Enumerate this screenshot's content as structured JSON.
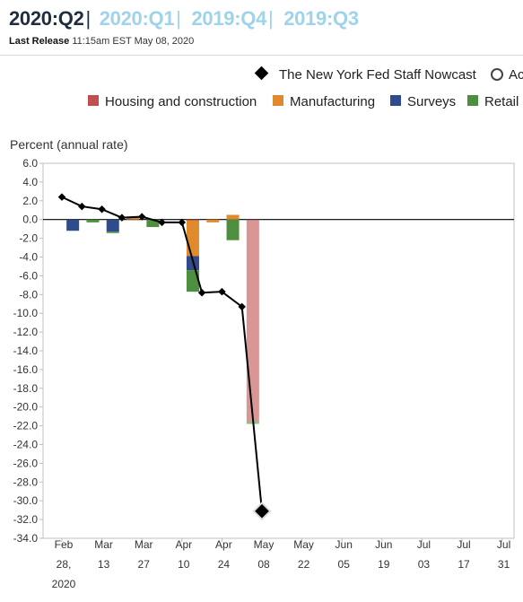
{
  "header": {
    "tabs": [
      {
        "label": "2020:Q2",
        "active": true
      },
      {
        "label": "2020:Q1",
        "active": false
      },
      {
        "label": "2019:Q4",
        "active": false
      },
      {
        "label": "2019:Q3",
        "active": false
      }
    ],
    "separator": "|",
    "release_label": "Last Release",
    "release_time": "11:15am EST May 08, 2020"
  },
  "colors": {
    "housing": "#c0504d",
    "manufacturing": "#e08a2e",
    "surveys": "#2f4b8c",
    "retail": "#4e8e3f",
    "nowcast": "#000000",
    "tab_inactive": "#9fd3ea",
    "tab_active": "#1f2d3d"
  },
  "chart_data": {
    "type": "bar",
    "ylabel": "Percent (annual rate)",
    "ylim": [
      -34,
      6
    ],
    "yticks": [
      "6.0",
      "4.0",
      "2.0",
      "0.0",
      "-2.0",
      "-4.0",
      "-6.0",
      "-8.0",
      "-10.0",
      "-12.0",
      "-14.0",
      "-16.0",
      "-18.0",
      "-20.0",
      "-22.0",
      "-24.0",
      "-26.0",
      "-28.0",
      "-30.0",
      "-32.0",
      "-34.0"
    ],
    "x_ticks": [
      {
        "line1": "Feb",
        "line2": "28,",
        "line3": "2020"
      },
      {
        "line1": "Mar",
        "line2": "13"
      },
      {
        "line1": "Mar",
        "line2": "27"
      },
      {
        "line1": "Apr",
        "line2": "10"
      },
      {
        "line1": "Apr",
        "line2": "24"
      },
      {
        "line1": "May",
        "line2": "08"
      },
      {
        "line1": "May",
        "line2": "22"
      },
      {
        "line1": "Jun",
        "line2": "05"
      },
      {
        "line1": "Jun",
        "line2": "19"
      },
      {
        "line1": "Jul",
        "line2": "03"
      },
      {
        "line1": "Jul",
        "line2": "17"
      },
      {
        "line1": "Jul",
        "line2": "31"
      }
    ],
    "legend": {
      "line_items": [
        "The New York Fed Staff Nowcast",
        "Ac"
      ],
      "bar_items": [
        "Housing and construction",
        "Manufacturing",
        "Surveys",
        "Retail"
      ]
    },
    "weeks": [
      "Feb 28",
      "Mar 06",
      "Mar 13",
      "Mar 20",
      "Mar 27",
      "Apr 03",
      "Apr 10",
      "Apr 17",
      "Apr 24",
      "May 01",
      "May 08"
    ],
    "nowcast": [
      2.4,
      1.4,
      1.1,
      0.2,
      0.3,
      -0.3,
      -0.3,
      -7.8,
      -7.7,
      -9.3,
      -31.1
    ],
    "series": [
      {
        "name": "Housing and construction",
        "values": [
          0,
          0,
          0,
          0,
          0,
          0,
          0,
          -0.1,
          0,
          0,
          -21.5
        ]
      },
      {
        "name": "Manufacturing",
        "values": [
          0,
          0,
          0,
          0,
          0.2,
          0,
          0,
          -3.8,
          -0.3,
          0.5,
          0
        ]
      },
      {
        "name": "Surveys",
        "values": [
          0,
          -1.2,
          0,
          -1.3,
          0,
          0,
          0,
          -1.5,
          0,
          0,
          0
        ]
      },
      {
        "name": "Retail",
        "values": [
          0,
          0,
          -0.3,
          -0.1,
          0,
          -0.8,
          0,
          -2.3,
          0,
          -2.2,
          -0.3
        ]
      }
    ]
  }
}
